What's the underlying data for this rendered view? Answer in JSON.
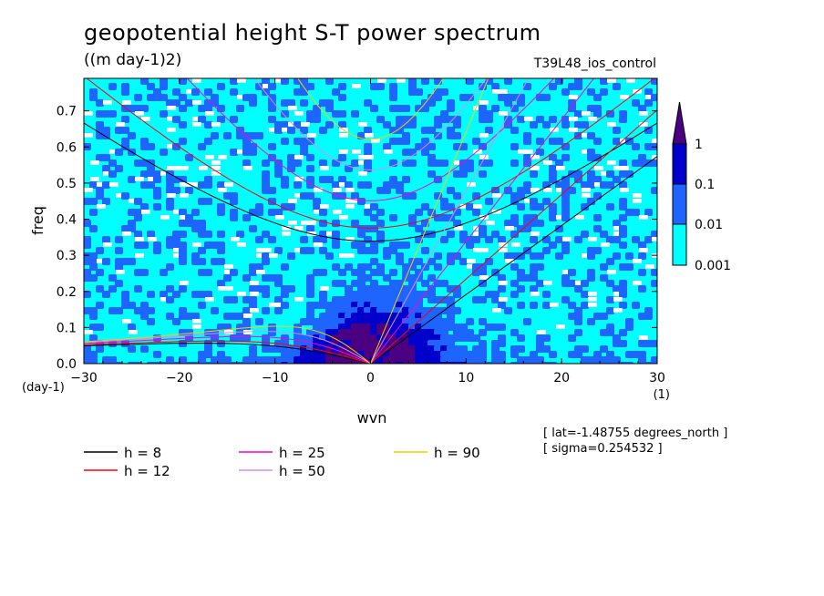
{
  "chart_data": {
    "type": "heatmap",
    "title": "geopotential height S-T power spectrum",
    "units": "((m day-1)2)",
    "run_name": "T39L48_ios_control",
    "xlabel": "wvn",
    "x_unit": "(1)",
    "ylabel": "freq",
    "y_unit": "(day-1)",
    "xlim": [
      -30,
      30
    ],
    "ylim": [
      0,
      0.79
    ],
    "x_ticks": [
      "-30",
      "-20",
      "-10",
      "0",
      "10",
      "20",
      "30"
    ],
    "y_ticks": [
      "0.0",
      "0.1",
      "0.2",
      "0.3",
      "0.4",
      "0.5",
      "0.6",
      "0.7"
    ],
    "colorbar": {
      "levels": [
        "1",
        "0.1",
        "0.01",
        "0.001"
      ],
      "colors": [
        "#4b0082",
        "#0000cd",
        "#1e64ff",
        "#00ffff"
      ]
    },
    "dispersion_curves": [
      {
        "label": "h =  8",
        "h": 8,
        "color": "#000000"
      },
      {
        "label": "h = 12",
        "h": 12,
        "color": "#ff0000"
      },
      {
        "label": "h = 25",
        "h": 25,
        "color": "#ff00cc"
      },
      {
        "label": "h = 50",
        "h": 50,
        "color": "#d58cf0"
      },
      {
        "label": "h = 90",
        "h": 90,
        "color": "#f0d000"
      }
    ],
    "info": [
      "[ lat=-1.48755 degrees_north ]",
      "[ sigma=0.254532 ]"
    ]
  }
}
